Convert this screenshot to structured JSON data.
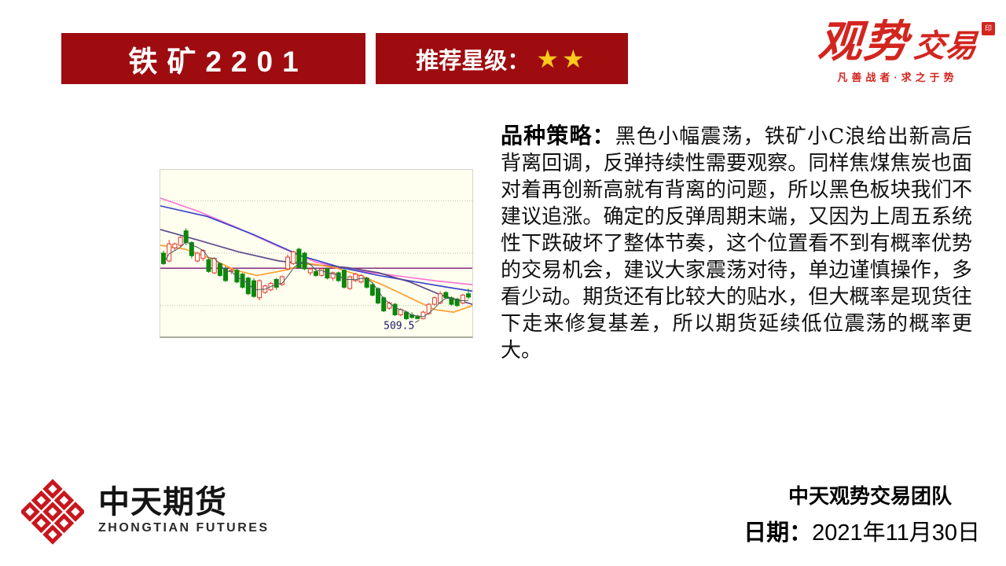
{
  "header": {
    "contract_banner": {
      "label": "铁矿2201",
      "bg": "#9E0C10",
      "text_color": "#FFFFFF"
    },
    "rating_banner": {
      "label": "推荐星级：",
      "stars": "★★",
      "bg": "#9E0C10",
      "star_color": "#FFC91E"
    }
  },
  "brand_logo": {
    "main_left": "观势",
    "main_right": "交易",
    "seal": "印",
    "tagline": "凡善战者·求之于势",
    "color": "#D3251F"
  },
  "strategy": {
    "label": "品种策略：",
    "body": "黑色小幅震荡，铁矿小C浪给出新高后背离回调，反弹持续性需要观察。同样焦煤焦炭也面对着再创新高就有背离的问题，所以黑色板块我们不建议追涨。确定的反弹周期末端，又因为上周五系统性下跌破坏了整体节奏，这个位置看不到有概率优势的交易机会，建议大家震荡对待，单边谨慎操作，多看少动。期货还有比较大的贴水，但大概率是现货往下走来修复基差，所以期货延续低位震荡的概率更大。"
  },
  "footer": {
    "company_cn": "中天期货",
    "company_en": "ZHONGTIAN FUTURES",
    "team": "中天观势交易团队",
    "date_label": "日期：",
    "date_value": "2021年11月30日",
    "logo_color": "#C8161D"
  },
  "chart_data": {
    "type": "candlestick",
    "title": "",
    "background": "#FFFFEF",
    "value_range": [
      496.5,
      623.5
    ],
    "gridlines": [
      600,
      560,
      520
    ],
    "grid_color": "#B9B9A9",
    "reference_line": {
      "value": 548.5,
      "color": "#7A1A7A"
    },
    "low_label": {
      "text": "509.5",
      "candle_index": 45,
      "color": "#1A1A6E"
    },
    "colors": {
      "up": "#DE3530",
      "down": "#0C870C",
      "short_ma": "#4A5A5F"
    },
    "candles": [
      [
        560,
        562,
        551,
        552
      ],
      [
        554,
        570,
        553,
        567
      ],
      [
        564,
        568,
        562,
        567
      ],
      [
        566,
        573,
        565,
        572
      ],
      [
        577,
        579,
        566,
        568
      ],
      [
        568,
        569,
        556,
        558
      ],
      [
        554,
        561,
        553,
        560
      ],
      [
        556,
        563,
        554,
        562
      ],
      [
        555,
        556,
        545,
        546
      ],
      [
        545,
        557,
        544,
        556
      ],
      [
        552,
        553,
        542,
        543
      ],
      [
        548,
        550,
        538,
        539
      ],
      [
        546,
        548,
        544,
        547
      ],
      [
        547,
        548,
        537,
        538
      ],
      [
        544,
        545,
        533,
        534
      ],
      [
        541,
        542,
        528,
        529
      ],
      [
        539,
        541,
        526,
        527
      ],
      [
        526,
        540,
        524,
        539
      ],
      [
        530,
        536,
        529,
        535
      ],
      [
        532,
        538,
        531,
        537
      ],
      [
        540,
        541,
        532,
        534
      ],
      [
        536,
        543,
        535,
        542
      ],
      [
        548,
        559,
        547,
        557
      ],
      [
        552,
        562,
        551,
        561
      ],
      [
        563,
        564,
        548,
        549
      ],
      [
        560,
        561,
        547,
        548
      ],
      [
        545,
        549,
        543,
        548
      ],
      [
        546,
        548,
        542,
        543
      ],
      [
        543,
        549,
        542,
        548
      ],
      [
        548,
        549,
        540,
        541
      ],
      [
        541,
        546,
        539,
        545
      ],
      [
        545,
        546,
        538,
        539
      ],
      [
        547,
        548,
        533,
        534
      ],
      [
        533,
        543,
        532,
        542
      ],
      [
        539,
        545,
        538,
        544
      ],
      [
        538,
        544,
        537,
        543
      ],
      [
        541,
        542,
        533,
        534
      ],
      [
        536,
        538,
        527,
        528
      ],
      [
        533,
        534,
        521,
        522
      ],
      [
        526,
        527,
        515,
        516
      ],
      [
        518,
        523,
        517,
        522
      ],
      [
        521,
        522,
        512,
        513
      ],
      [
        513,
        518,
        512,
        517
      ],
      [
        515,
        516,
        509,
        510
      ],
      [
        513,
        515,
        510,
        511
      ],
      [
        512,
        513,
        509.5,
        510
      ],
      [
        510,
        516,
        509.5,
        515
      ],
      [
        514,
        522,
        513,
        521
      ],
      [
        521,
        527,
        520,
        526
      ],
      [
        522,
        531,
        521,
        529
      ],
      [
        530,
        531,
        525,
        526
      ],
      [
        526,
        527,
        520,
        521
      ],
      [
        525,
        526,
        519,
        520
      ],
      [
        522,
        529,
        521,
        528
      ],
      [
        529,
        533,
        525,
        526.5
      ]
    ],
    "ma_lines": [
      {
        "name": "ma-pink",
        "color": "#FF77D6",
        "points": [
          [
            0,
            602
          ],
          [
            12,
            592
          ],
          [
            25,
            579
          ],
          [
            38,
            565
          ],
          [
            50,
            553
          ],
          [
            62,
            547
          ],
          [
            75,
            543
          ],
          [
            88,
            539
          ],
          [
            100,
            536
          ]
        ]
      },
      {
        "name": "ma-blue",
        "color": "#3C46C8",
        "points": [
          [
            0,
            596
          ],
          [
            15,
            588
          ],
          [
            30,
            574
          ],
          [
            45,
            558
          ],
          [
            58,
            549
          ],
          [
            70,
            543
          ],
          [
            82,
            538
          ],
          [
            92,
            534
          ],
          [
            100,
            531
          ]
        ]
      },
      {
        "name": "ma-violet",
        "color": "#5E4B8B",
        "points": [
          [
            0,
            578
          ],
          [
            12,
            570
          ],
          [
            25,
            561
          ],
          [
            38,
            554
          ],
          [
            50,
            551
          ],
          [
            60,
            549
          ],
          [
            70,
            545
          ],
          [
            80,
            538
          ],
          [
            90,
            528
          ],
          [
            100,
            521
          ]
        ]
      },
      {
        "name": "ma-orange",
        "color": "#FF9F2E",
        "points": [
          [
            0,
            566
          ],
          [
            8,
            563
          ],
          [
            16,
            556
          ],
          [
            24,
            547
          ],
          [
            31,
            543
          ],
          [
            40,
            547
          ],
          [
            48,
            552
          ],
          [
            56,
            549
          ],
          [
            64,
            543
          ],
          [
            72,
            535
          ],
          [
            80,
            526
          ],
          [
            88,
            517
          ],
          [
            94,
            515
          ],
          [
            100,
            520
          ]
        ]
      }
    ]
  }
}
